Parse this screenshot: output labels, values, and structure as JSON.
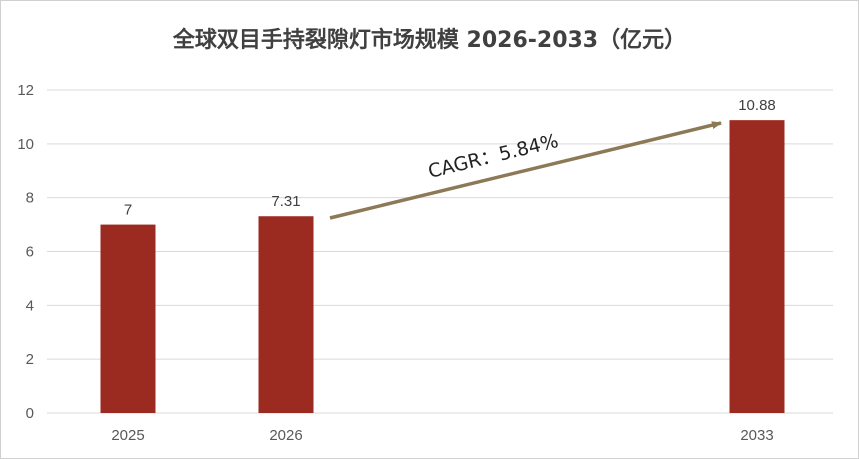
{
  "chart_data": {
    "type": "bar",
    "title": "全球双目手持裂隙灯市场规模 2026-2033（亿元）",
    "categories": [
      "2025",
      "2026",
      "2033"
    ],
    "values": [
      7,
      7.31,
      10.88
    ],
    "data_labels": [
      "7",
      "7.31",
      "10.88"
    ],
    "yticks": [
      "0",
      "2",
      "4",
      "6",
      "8",
      "10",
      "12"
    ],
    "ylim": [
      0,
      12
    ],
    "grid": true,
    "legend": "none",
    "annotation": "CAGR：5.84%",
    "bar_color": "#9b2b20",
    "arrow_color": "#8c7a56",
    "grid_color": "#d9d9d9"
  }
}
